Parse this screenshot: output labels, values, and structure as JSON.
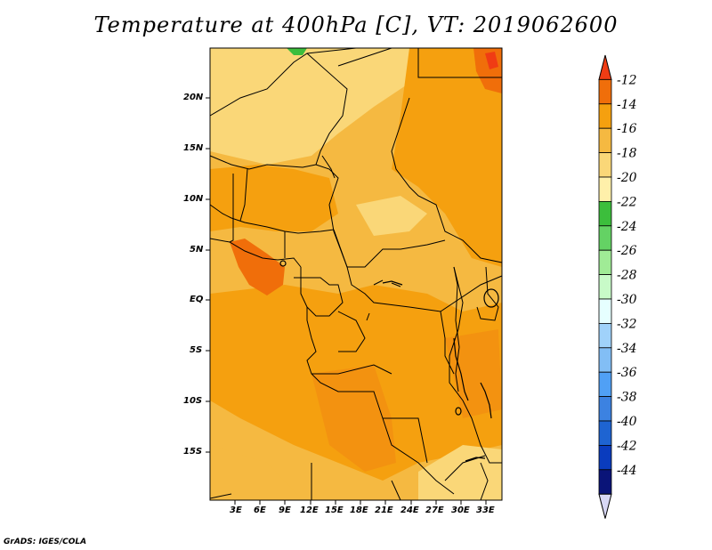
{
  "title": "Temperature at 400hPa [C], VT: 2019062600",
  "credit": "GrADS: IGES/COLA",
  "lat_labels": [
    "20N",
    "15N",
    "10N",
    "5N",
    "EQ",
    "5S",
    "10S",
    "15S"
  ],
  "lon_labels": [
    "3E",
    "6E",
    "9E",
    "12E",
    "15E",
    "18E",
    "21E",
    "24E",
    "27E",
    "30E",
    "33E"
  ],
  "colorbar": {
    "labels": [
      "-12",
      "-14",
      "-16",
      "-18",
      "-20",
      "-22",
      "-24",
      "-26",
      "-28",
      "-30",
      "-32",
      "-34",
      "-36",
      "-38",
      "-40",
      "-42",
      "-44"
    ],
    "colors": [
      "#f03c14",
      "#f06e0a",
      "#f5a00f",
      "#f5b941",
      "#fad778",
      "#fff0aa",
      "#3cbe3c",
      "#64d264",
      "#a0eb96",
      "#c8fac8",
      "#e6ffff",
      "#a0d2fa",
      "#82bef5",
      "#50a0f5",
      "#3c82e1",
      "#1e64d2",
      "#0a3cbe",
      "#0a1478",
      "#d8d8f5"
    ],
    "min": -44,
    "max": -12,
    "step": 2
  }
}
